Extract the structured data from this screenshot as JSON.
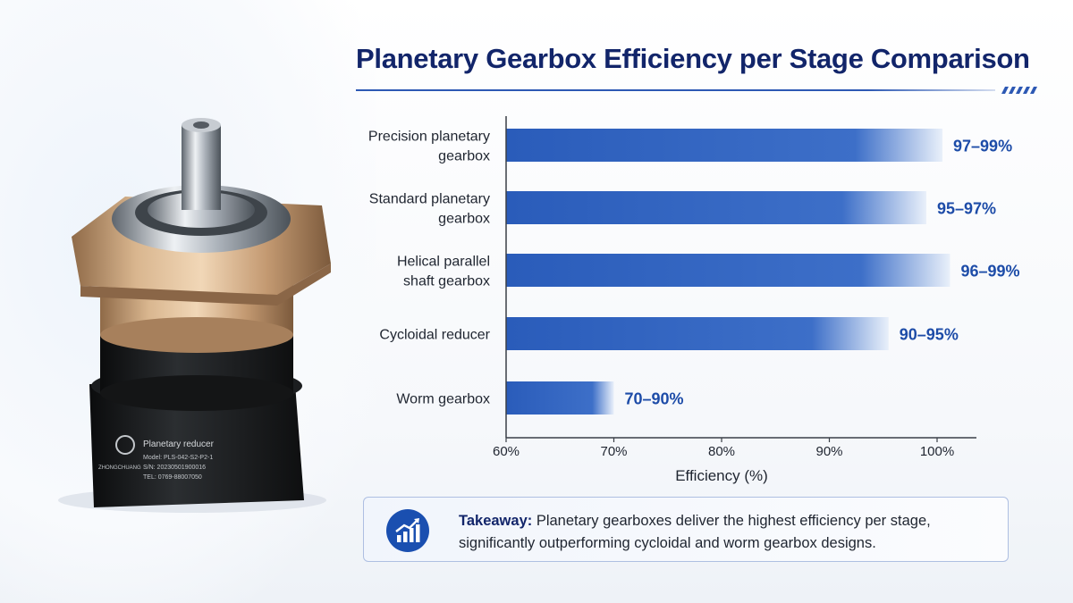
{
  "chart_data": {
    "type": "bar",
    "orientation": "horizontal",
    "title": "Planetary Gearbox Efficiency per Stage Comparison",
    "xlabel": "Efficiency (%)",
    "ylabel": "",
    "xlim": [
      60,
      100
    ],
    "xticks": [
      60,
      70,
      80,
      90,
      100
    ],
    "xtick_labels": [
      "60%",
      "70%",
      "80%",
      "90%",
      "100%"
    ],
    "grid": false,
    "categories": [
      [
        "Precision planetary",
        "gearbox"
      ],
      [
        "Standard planetary",
        "gearbox"
      ],
      [
        "Helical parallel",
        "shaft gearbox"
      ],
      [
        "Cycloidal reducer"
      ],
      [
        "Worm gearbox"
      ]
    ],
    "ranges": [
      [
        97,
        99
      ],
      [
        95,
        97
      ],
      [
        96,
        99
      ],
      [
        90,
        95
      ],
      [
        70,
        90
      ]
    ],
    "bar_end_values": [
      100.5,
      99,
      101.2,
      95.5,
      70
    ],
    "value_labels": [
      "97–99%",
      "95–97%",
      "96–99%",
      "90–95%",
      "70–90%"
    ],
    "bar_color": "#2a5cba",
    "label_color": "#1d4ca8"
  },
  "takeaway": {
    "bold": "Takeaway:",
    "text": " Planetary gearboxes deliver the highest efficiency per stage, significantly outperforming cycloidal and worm gearbox designs.",
    "icon": "chart-growth-icon"
  },
  "product": {
    "label_line1": "Planetary reducer",
    "label_line2": "Model: PLS-042-S2-P2-1",
    "label_line3": "S/N: 20230501900016",
    "label_line4": "TEL: 0769-88007050",
    "brand": "ZHONGCHUANG",
    "colors": {
      "bronze": "#c9a27a",
      "steel": "#b9c0c8",
      "black": "#151719"
    }
  }
}
